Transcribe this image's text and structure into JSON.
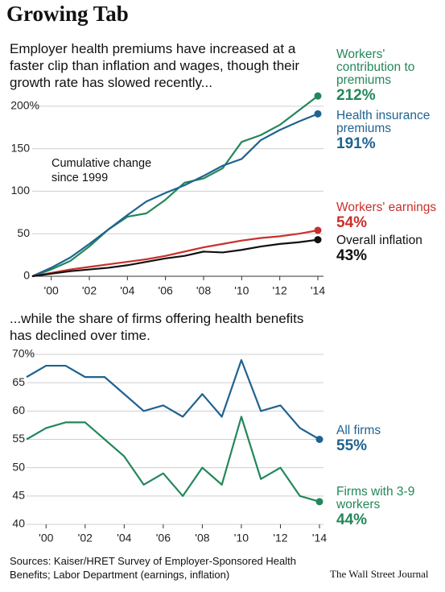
{
  "header": {
    "title": "Growing Tab"
  },
  "chart_data": [
    {
      "type": "line",
      "subtitle": "Employer health premiums have increased at a faster clip than inflation and wages, though their growth rate has slowed recently...",
      "annotation": "Cumulative change since 1999",
      "x": [
        1999,
        2000,
        2001,
        2002,
        2003,
        2004,
        2005,
        2006,
        2007,
        2008,
        2009,
        2010,
        2011,
        2012,
        2013,
        2014
      ],
      "xlim": [
        1999,
        2014
      ],
      "xticks": [
        {
          "value": 2000,
          "label": "'00"
        },
        {
          "value": 2002,
          "label": "'02"
        },
        {
          "value": 2004,
          "label": "'04"
        },
        {
          "value": 2006,
          "label": "'06"
        },
        {
          "value": 2008,
          "label": "'08"
        },
        {
          "value": 2010,
          "label": "'10"
        },
        {
          "value": 2012,
          "label": "'12"
        },
        {
          "value": 2014,
          "label": "'14"
        }
      ],
      "ylim": [
        0,
        215
      ],
      "yticks": [
        0,
        50,
        100,
        150,
        {
          "value": 200,
          "label": "200%"
        }
      ],
      "grid": true,
      "series": [
        {
          "name": "Workers' contribution to premiums",
          "color": "#23875a",
          "values": [
            0,
            8,
            18,
            35,
            55,
            70,
            74,
            90,
            110,
            115,
            127,
            158,
            166,
            178,
            195,
            212
          ],
          "value_labels": [
            null,
            null,
            null,
            null,
            null,
            null,
            null,
            null,
            null,
            null,
            null,
            null,
            null,
            null,
            null,
            "212%"
          ]
        },
        {
          "name": "Health insurance premiums",
          "color": "#1f6391",
          "values": [
            0,
            10,
            22,
            38,
            55,
            72,
            88,
            98,
            107,
            118,
            130,
            138,
            160,
            172,
            182,
            191
          ],
          "value_labels": [
            null,
            null,
            null,
            null,
            null,
            null,
            null,
            null,
            null,
            null,
            null,
            null,
            null,
            null,
            null,
            "191%"
          ]
        },
        {
          "name": "Workers' earnings",
          "color": "#c8302c",
          "values": [
            0,
            4,
            8,
            11,
            14,
            17,
            20,
            24,
            29,
            34,
            38,
            42,
            45,
            47,
            50,
            54
          ],
          "value_labels": [
            null,
            null,
            null,
            null,
            null,
            null,
            null,
            null,
            null,
            null,
            null,
            null,
            null,
            null,
            null,
            "54%"
          ]
        },
        {
          "name": "Overall inflation",
          "color": "#111111",
          "values": [
            0,
            3,
            6,
            8,
            10,
            13,
            17,
            21,
            24,
            29,
            28,
            31,
            35,
            38,
            40,
            43
          ],
          "value_labels": [
            null,
            null,
            null,
            null,
            null,
            null,
            null,
            null,
            null,
            null,
            null,
            null,
            null,
            null,
            null,
            "43%"
          ]
        }
      ]
    },
    {
      "type": "line",
      "subtitle": "...while the share of firms offering health benefits has declined over time.",
      "x": [
        1999,
        2000,
        2001,
        2002,
        2003,
        2004,
        2005,
        2006,
        2007,
        2008,
        2009,
        2010,
        2011,
        2012,
        2013,
        2014
      ],
      "xlim": [
        1999,
        2014
      ],
      "xticks": [
        {
          "value": 2000,
          "label": "'00"
        },
        {
          "value": 2002,
          "label": "'02"
        },
        {
          "value": 2004,
          "label": "'04"
        },
        {
          "value": 2006,
          "label": "'06"
        },
        {
          "value": 2008,
          "label": "'08"
        },
        {
          "value": 2010,
          "label": "'10"
        },
        {
          "value": 2012,
          "label": "'12"
        },
        {
          "value": 2014,
          "label": "'14"
        }
      ],
      "ylim": [
        40,
        70
      ],
      "yticks": [
        40,
        45,
        50,
        55,
        60,
        65,
        {
          "value": 70,
          "label": "70%"
        }
      ],
      "grid": true,
      "series": [
        {
          "name": "All firms",
          "color": "#1f6391",
          "values": [
            66,
            68,
            68,
            66,
            66,
            63,
            60,
            61,
            59,
            63,
            59,
            69,
            60,
            61,
            57,
            55
          ],
          "value_labels": [
            null,
            null,
            null,
            null,
            null,
            null,
            null,
            null,
            null,
            null,
            null,
            null,
            null,
            null,
            null,
            "55%"
          ]
        },
        {
          "name": "Firms with 3-9 workers",
          "color": "#23875a",
          "values": [
            55,
            57,
            58,
            58,
            55,
            52,
            47,
            49,
            45,
            50,
            47,
            59,
            48,
            50,
            45,
            44
          ],
          "value_labels": [
            null,
            null,
            null,
            null,
            null,
            null,
            null,
            null,
            null,
            null,
            null,
            null,
            null,
            null,
            null,
            "44%"
          ]
        }
      ]
    }
  ],
  "footer": {
    "sources": "Sources: Kaiser/HRET Survey of Employer-Sponsored Health Benefits; Labor Department (earnings, inflation)",
    "credit": "The Wall Street Journal"
  }
}
